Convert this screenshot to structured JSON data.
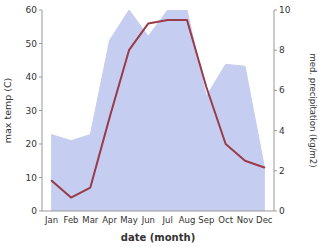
{
  "chart_data": {
    "type": "line",
    "categories": [
      "Jan",
      "Feb",
      "Mar",
      "Apr",
      "May",
      "Jun",
      "Jul",
      "Aug",
      "Sep",
      "Oct",
      "Nov",
      "Dec"
    ],
    "series": [
      {
        "type": "line",
        "color": "#9b3a4a",
        "values": [
          9,
          4,
          7,
          28,
          48,
          56,
          57,
          57,
          37,
          20,
          15,
          13
        ]
      },
      {
        "type": "area",
        "axis": "y2",
        "color": "#c5cef0",
        "values": [
          3.8,
          3.5,
          3.8,
          8.5,
          10.0,
          8.7,
          10.0,
          10.0,
          5.7,
          7.3,
          7.2,
          2.2
        ]
      }
    ],
    "xlabel": "date (month)",
    "ylabel": "max temp (C)",
    "y2label": "med. precipitation (kg/m2)",
    "ylim": [
      0,
      60
    ],
    "yticks": [
      0,
      10,
      20,
      30,
      40,
      50,
      60
    ],
    "y2lim": [
      0,
      10
    ],
    "y2ticks": [
      0,
      2,
      4,
      6,
      8,
      10
    ],
    "grid": false
  }
}
